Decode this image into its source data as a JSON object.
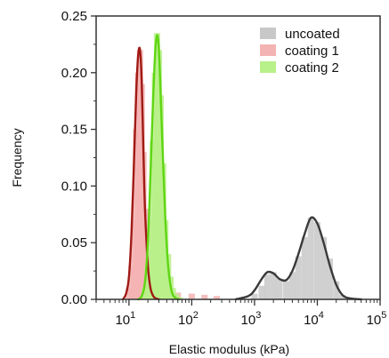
{
  "chart_data": {
    "type": "histogram",
    "xlabel": "Elastic modulus (kPa)",
    "ylabel": "Frequency",
    "xscale": "log",
    "xlim": [
      3,
      100000
    ],
    "ylim": [
      0,
      0.25
    ],
    "x_ticks": [
      {
        "value": 10,
        "base": "10",
        "exp": "1"
      },
      {
        "value": 100,
        "base": "10",
        "exp": "2"
      },
      {
        "value": 1000,
        "base": "10",
        "exp": "3"
      },
      {
        "value": 10000,
        "base": "10",
        "exp": "4"
      },
      {
        "value": 100000,
        "base": "10",
        "exp": "5"
      }
    ],
    "y_ticks": [
      {
        "value": 0.0,
        "label": "0.00"
      },
      {
        "value": 0.05,
        "label": "0.05"
      },
      {
        "value": 0.1,
        "label": "0.10"
      },
      {
        "value": 0.15,
        "label": "0.15"
      },
      {
        "value": 0.2,
        "label": "0.20"
      },
      {
        "value": 0.25,
        "label": "0.25"
      }
    ],
    "grid": false,
    "legend_position": "top-right",
    "series": [
      {
        "name": "uncoated",
        "bar_color": "#c8c8c8",
        "fit_color": "#3a3a3a",
        "bins_x": [
          1000,
          1300,
          1600,
          2000,
          2500,
          3200,
          4000,
          5000,
          6300,
          7900,
          10000,
          12600,
          15800,
          20000,
          25000
        ],
        "bins_y": [
          0.005,
          0.012,
          0.022,
          0.024,
          0.018,
          0.016,
          0.024,
          0.038,
          0.055,
          0.072,
          0.068,
          0.055,
          0.036,
          0.016,
          0.004
        ],
        "fit_x": [
          500,
          800,
          1000,
          1300,
          1600,
          2000,
          2500,
          3200,
          4000,
          5000,
          6300,
          7900,
          10000,
          12600,
          15800,
          20000,
          25000,
          32000,
          50000
        ],
        "fit_y": [
          0.0,
          0.003,
          0.008,
          0.018,
          0.024,
          0.023,
          0.018,
          0.017,
          0.025,
          0.04,
          0.058,
          0.072,
          0.067,
          0.05,
          0.03,
          0.013,
          0.004,
          0.001,
          0.0
        ]
      },
      {
        "name": "coating 1",
        "bar_color": "#f4b3b3",
        "fit_color": "#a01a14",
        "bins_x": [
          10,
          11,
          12,
          13,
          14,
          15,
          16,
          17,
          18,
          20,
          22,
          25,
          28,
          32,
          40,
          60,
          100,
          160,
          250
        ],
        "bins_y": [
          0.01,
          0.03,
          0.07,
          0.15,
          0.2,
          0.22,
          0.19,
          0.13,
          0.08,
          0.04,
          0.025,
          0.018,
          0.015,
          0.012,
          0.01,
          0.006,
          0.005,
          0.004,
          0.003
        ],
        "fit_x": [
          8,
          9,
          10,
          11,
          12,
          13,
          14,
          15,
          16,
          17,
          18,
          20,
          22,
          25,
          30
        ],
        "fit_y": [
          0.0,
          0.005,
          0.02,
          0.06,
          0.12,
          0.18,
          0.215,
          0.22,
          0.19,
          0.13,
          0.08,
          0.03,
          0.01,
          0.002,
          0.0
        ]
      },
      {
        "name": "coating 2",
        "bar_color": "#b8f08a",
        "fit_color": "#5fd613",
        "bins_x": [
          18,
          20,
          22,
          24,
          26,
          28,
          30,
          32,
          35,
          38,
          42,
          46,
          50,
          56,
          63
        ],
        "bins_y": [
          0.01,
          0.03,
          0.07,
          0.14,
          0.2,
          0.235,
          0.22,
          0.18,
          0.12,
          0.07,
          0.04,
          0.02,
          0.01,
          0.005,
          0.002
        ],
        "fit_x": [
          14,
          16,
          18,
          20,
          22,
          24,
          26,
          28,
          30,
          32,
          35,
          38,
          42,
          46,
          50,
          56,
          63
        ],
        "fit_y": [
          0.0,
          0.003,
          0.015,
          0.05,
          0.11,
          0.17,
          0.215,
          0.233,
          0.22,
          0.18,
          0.12,
          0.07,
          0.03,
          0.012,
          0.004,
          0.001,
          0.0
        ]
      }
    ]
  }
}
